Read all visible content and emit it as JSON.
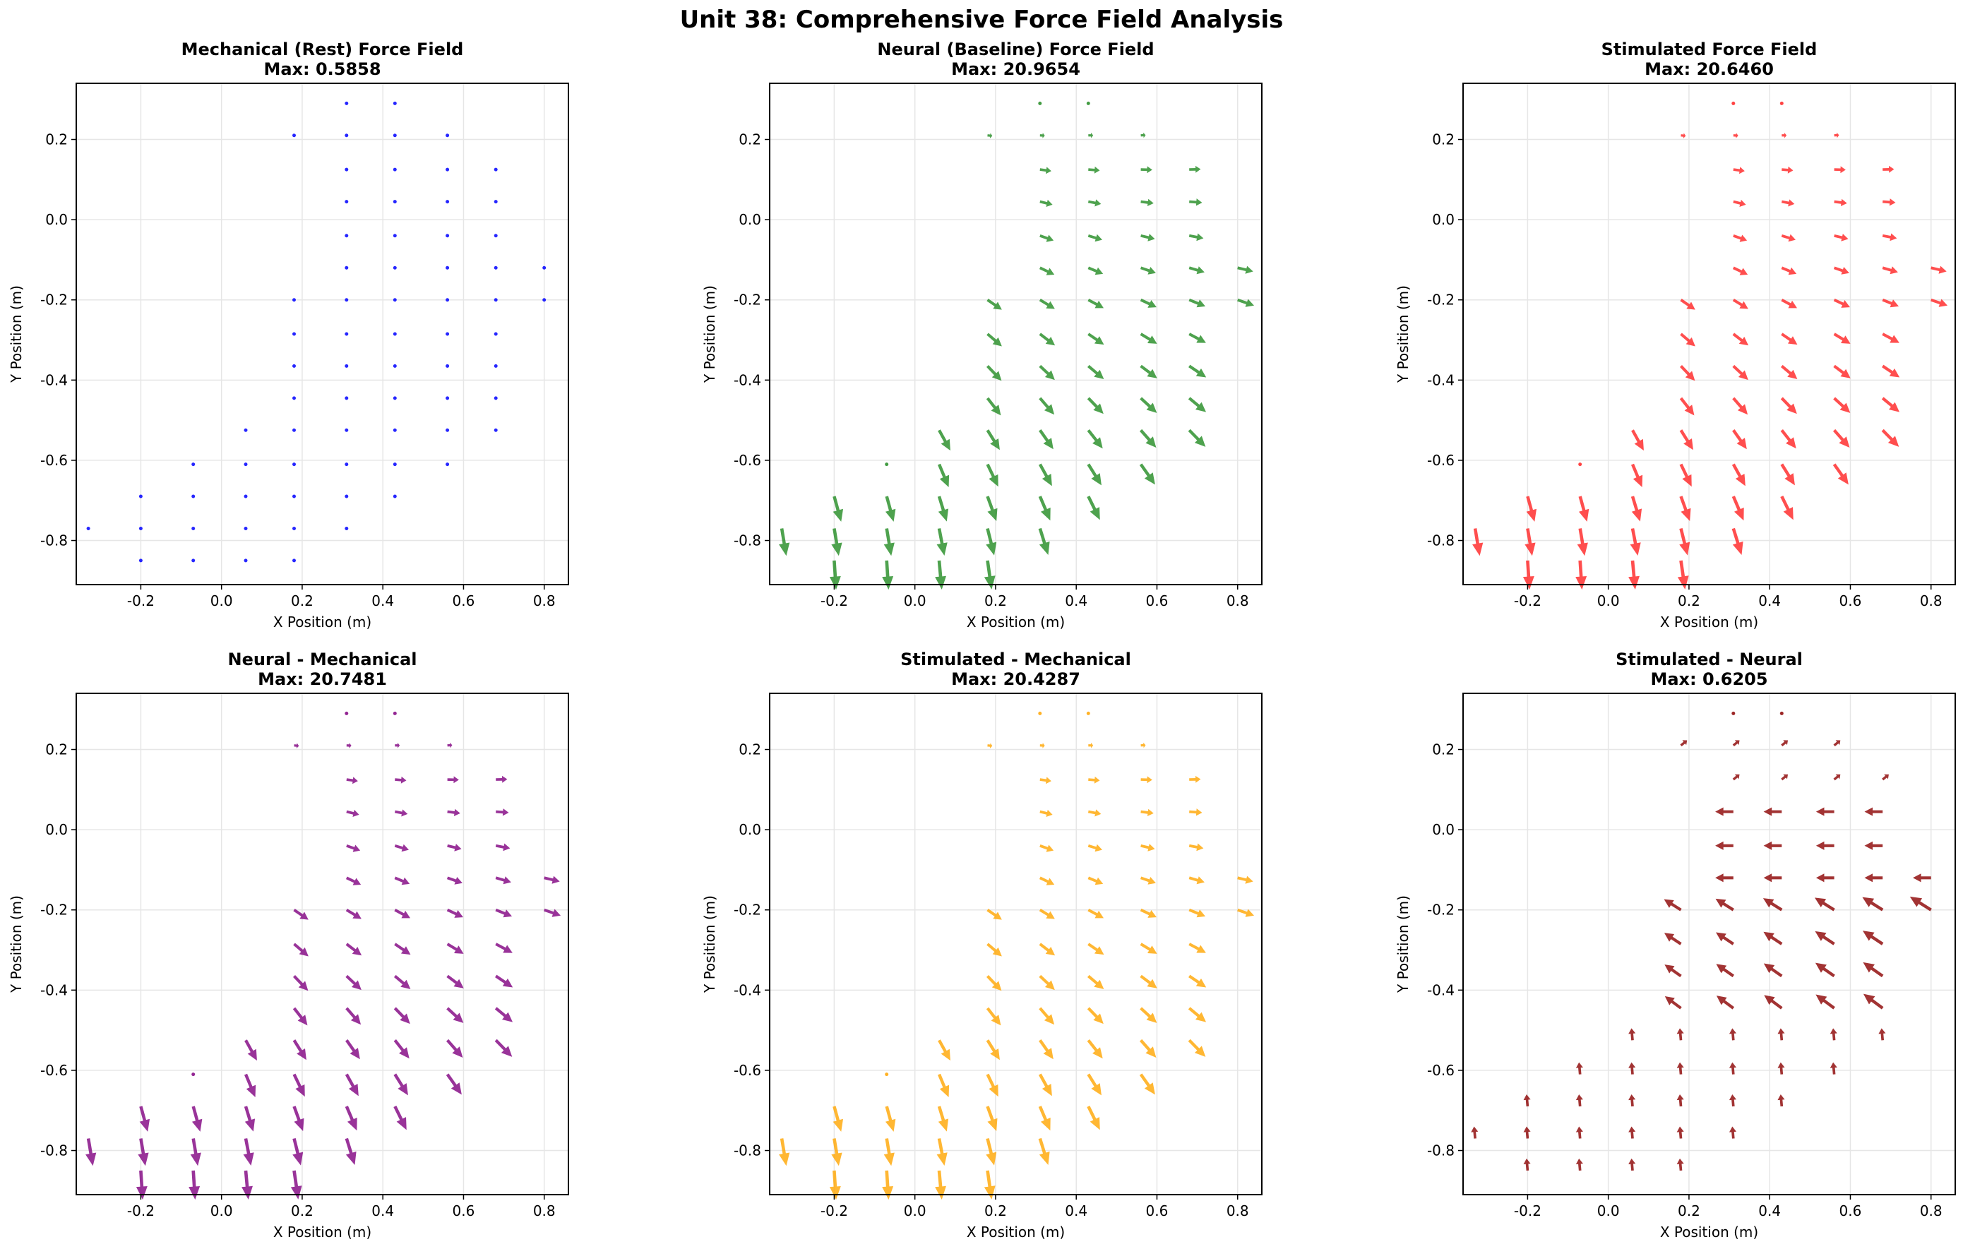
{
  "figure": {
    "suptitle": "Unit 38: Comprehensive Force Field Analysis"
  },
  "chart_data": [
    {
      "type": "quiver",
      "title": "Mechanical (Rest) Force Field",
      "subtitle": "Max: 0.5858",
      "xlabel": "X Position (m)",
      "ylabel": "Y Position (m)",
      "xlim": [
        -0.36,
        0.86
      ],
      "ylim": [
        -0.91,
        0.34
      ],
      "xticks": [
        -0.2,
        0.0,
        0.2,
        0.4,
        0.6,
        0.8
      ],
      "yticks": [
        -0.8,
        -0.6,
        -0.4,
        -0.2,
        0.0,
        0.2
      ],
      "grid": true,
      "color": "#0000ff",
      "field": "mech"
    },
    {
      "type": "quiver",
      "title": "Neural (Baseline) Force Field",
      "subtitle": "Max: 20.9654",
      "xlabel": "X Position (m)",
      "ylabel": "Y Position (m)",
      "xlim": [
        -0.36,
        0.86
      ],
      "ylim": [
        -0.91,
        0.34
      ],
      "xticks": [
        -0.2,
        0.0,
        0.2,
        0.4,
        0.6,
        0.8
      ],
      "yticks": [
        -0.8,
        -0.6,
        -0.4,
        -0.2,
        0.0,
        0.2
      ],
      "grid": true,
      "color": "#228b22",
      "field": "neural"
    },
    {
      "type": "quiver",
      "title": "Stimulated Force Field",
      "subtitle": "Max: 20.6460",
      "xlabel": "X Position (m)",
      "ylabel": "Y Position (m)",
      "xlim": [
        -0.36,
        0.86
      ],
      "ylim": [
        -0.91,
        0.34
      ],
      "xticks": [
        -0.2,
        0.0,
        0.2,
        0.4,
        0.6,
        0.8
      ],
      "yticks": [
        -0.8,
        -0.6,
        -0.4,
        -0.2,
        0.0,
        0.2
      ],
      "grid": true,
      "color": "#ff2222",
      "field": "neural"
    },
    {
      "type": "quiver",
      "title": "Neural - Mechanical",
      "subtitle": "Max: 20.7481",
      "xlabel": "X Position (m)",
      "ylabel": "Y Position (m)",
      "xlim": [
        -0.36,
        0.86
      ],
      "ylim": [
        -0.91,
        0.34
      ],
      "xticks": [
        -0.2,
        0.0,
        0.2,
        0.4,
        0.6,
        0.8
      ],
      "yticks": [
        -0.8,
        -0.6,
        -0.4,
        -0.2,
        0.0,
        0.2
      ],
      "grid": true,
      "color": "#800080",
      "field": "neural"
    },
    {
      "type": "quiver",
      "title": "Stimulated - Mechanical",
      "subtitle": "Max: 20.4287",
      "xlabel": "X Position (m)",
      "ylabel": "Y Position (m)",
      "xlim": [
        -0.36,
        0.86
      ],
      "ylim": [
        -0.91,
        0.34
      ],
      "xticks": [
        -0.2,
        0.0,
        0.2,
        0.4,
        0.6,
        0.8
      ],
      "yticks": [
        -0.8,
        -0.6,
        -0.4,
        -0.2,
        0.0,
        0.2
      ],
      "grid": true,
      "color": "#ffa500",
      "field": "neural"
    },
    {
      "type": "quiver",
      "title": "Stimulated - Neural",
      "subtitle": "Max: 0.6205",
      "xlabel": "X Position (m)",
      "ylabel": "Y Position (m)",
      "xlim": [
        -0.36,
        0.86
      ],
      "ylim": [
        -0.91,
        0.34
      ],
      "xticks": [
        -0.2,
        0.0,
        0.2,
        0.4,
        0.6,
        0.8
      ],
      "yticks": [
        -0.8,
        -0.6,
        -0.4,
        -0.2,
        0.0,
        0.2
      ],
      "grid": true,
      "color": "#8b0000",
      "field": "diff"
    }
  ]
}
